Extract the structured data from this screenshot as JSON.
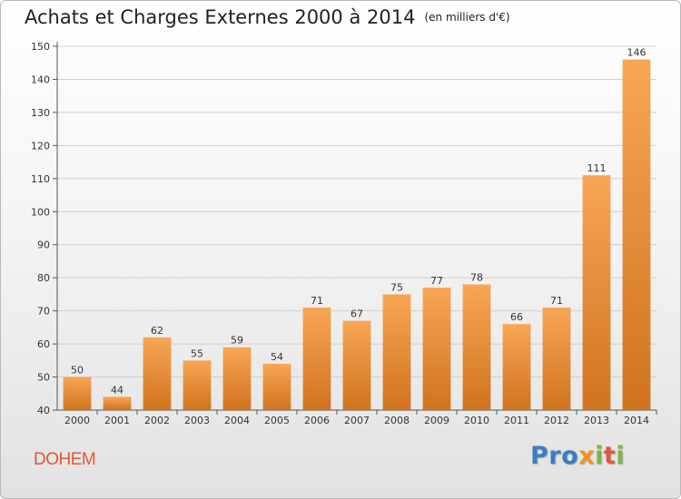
{
  "title": "Achats et Charges Externes 2000 à 2014",
  "unit": "(en milliers d'€)",
  "place": "DOHEM",
  "brand": {
    "letters": [
      "P",
      "r",
      "o",
      "x",
      "i",
      "t",
      "i"
    ],
    "colors": [
      "#3a7fc4",
      "#3a7fc4",
      "#3a7fc4",
      "#f39220",
      "#7ab648",
      "#e0563b",
      "#7ab648"
    ]
  },
  "colors": {
    "bar_light": "#f8a655",
    "bar_dark": "#d0731f",
    "grid": "#cfcfcf",
    "axis": "#555555",
    "place": "#e0563b"
  },
  "chart_data": {
    "type": "bar",
    "title": "Achats et Charges Externes 2000 à 2014",
    "subtitle": "(en milliers d'€)",
    "categories": [
      "2000",
      "2001",
      "2002",
      "2003",
      "2004",
      "2005",
      "2006",
      "2007",
      "2008",
      "2009",
      "2010",
      "2011",
      "2012",
      "2013",
      "2014"
    ],
    "values": [
      50,
      44,
      62,
      55,
      59,
      54,
      71,
      67,
      75,
      77,
      78,
      66,
      71,
      111,
      146
    ],
    "ylim": [
      40,
      150
    ],
    "yticks": [
      40,
      50,
      60,
      70,
      80,
      90,
      100,
      110,
      120,
      130,
      140,
      150
    ],
    "grid": true,
    "data_labels": true
  }
}
